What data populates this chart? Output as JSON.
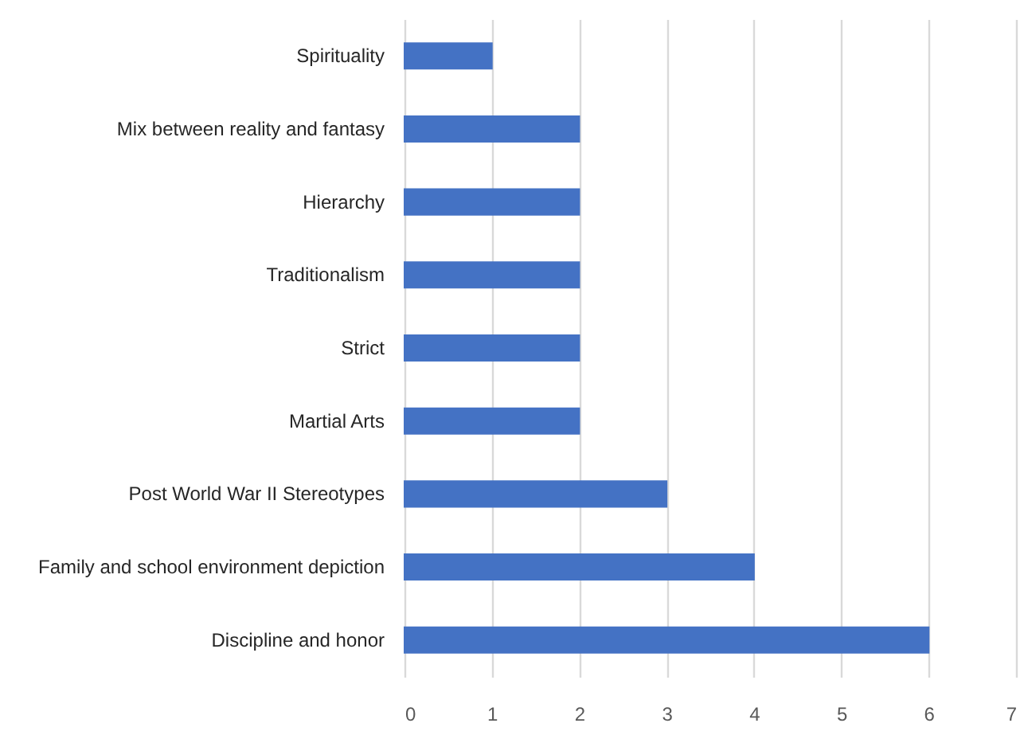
{
  "chart_data": {
    "type": "bar",
    "orientation": "horizontal",
    "categories": [
      "Spirituality",
      "Mix between reality and fantasy",
      "Hierarchy",
      "Traditionalism ",
      "Strict",
      "Martial Arts",
      "Post World War II Stereotypes ",
      "Family and school environment depiction",
      "Discipline and honor"
    ],
    "values": [
      1,
      2,
      2,
      2,
      2,
      2,
      3,
      4,
      6
    ],
    "color": "#4472c4",
    "xlim": [
      0,
      7
    ],
    "xticks": [
      0,
      1,
      2,
      3,
      4,
      5,
      6,
      7
    ],
    "grid": "x"
  }
}
